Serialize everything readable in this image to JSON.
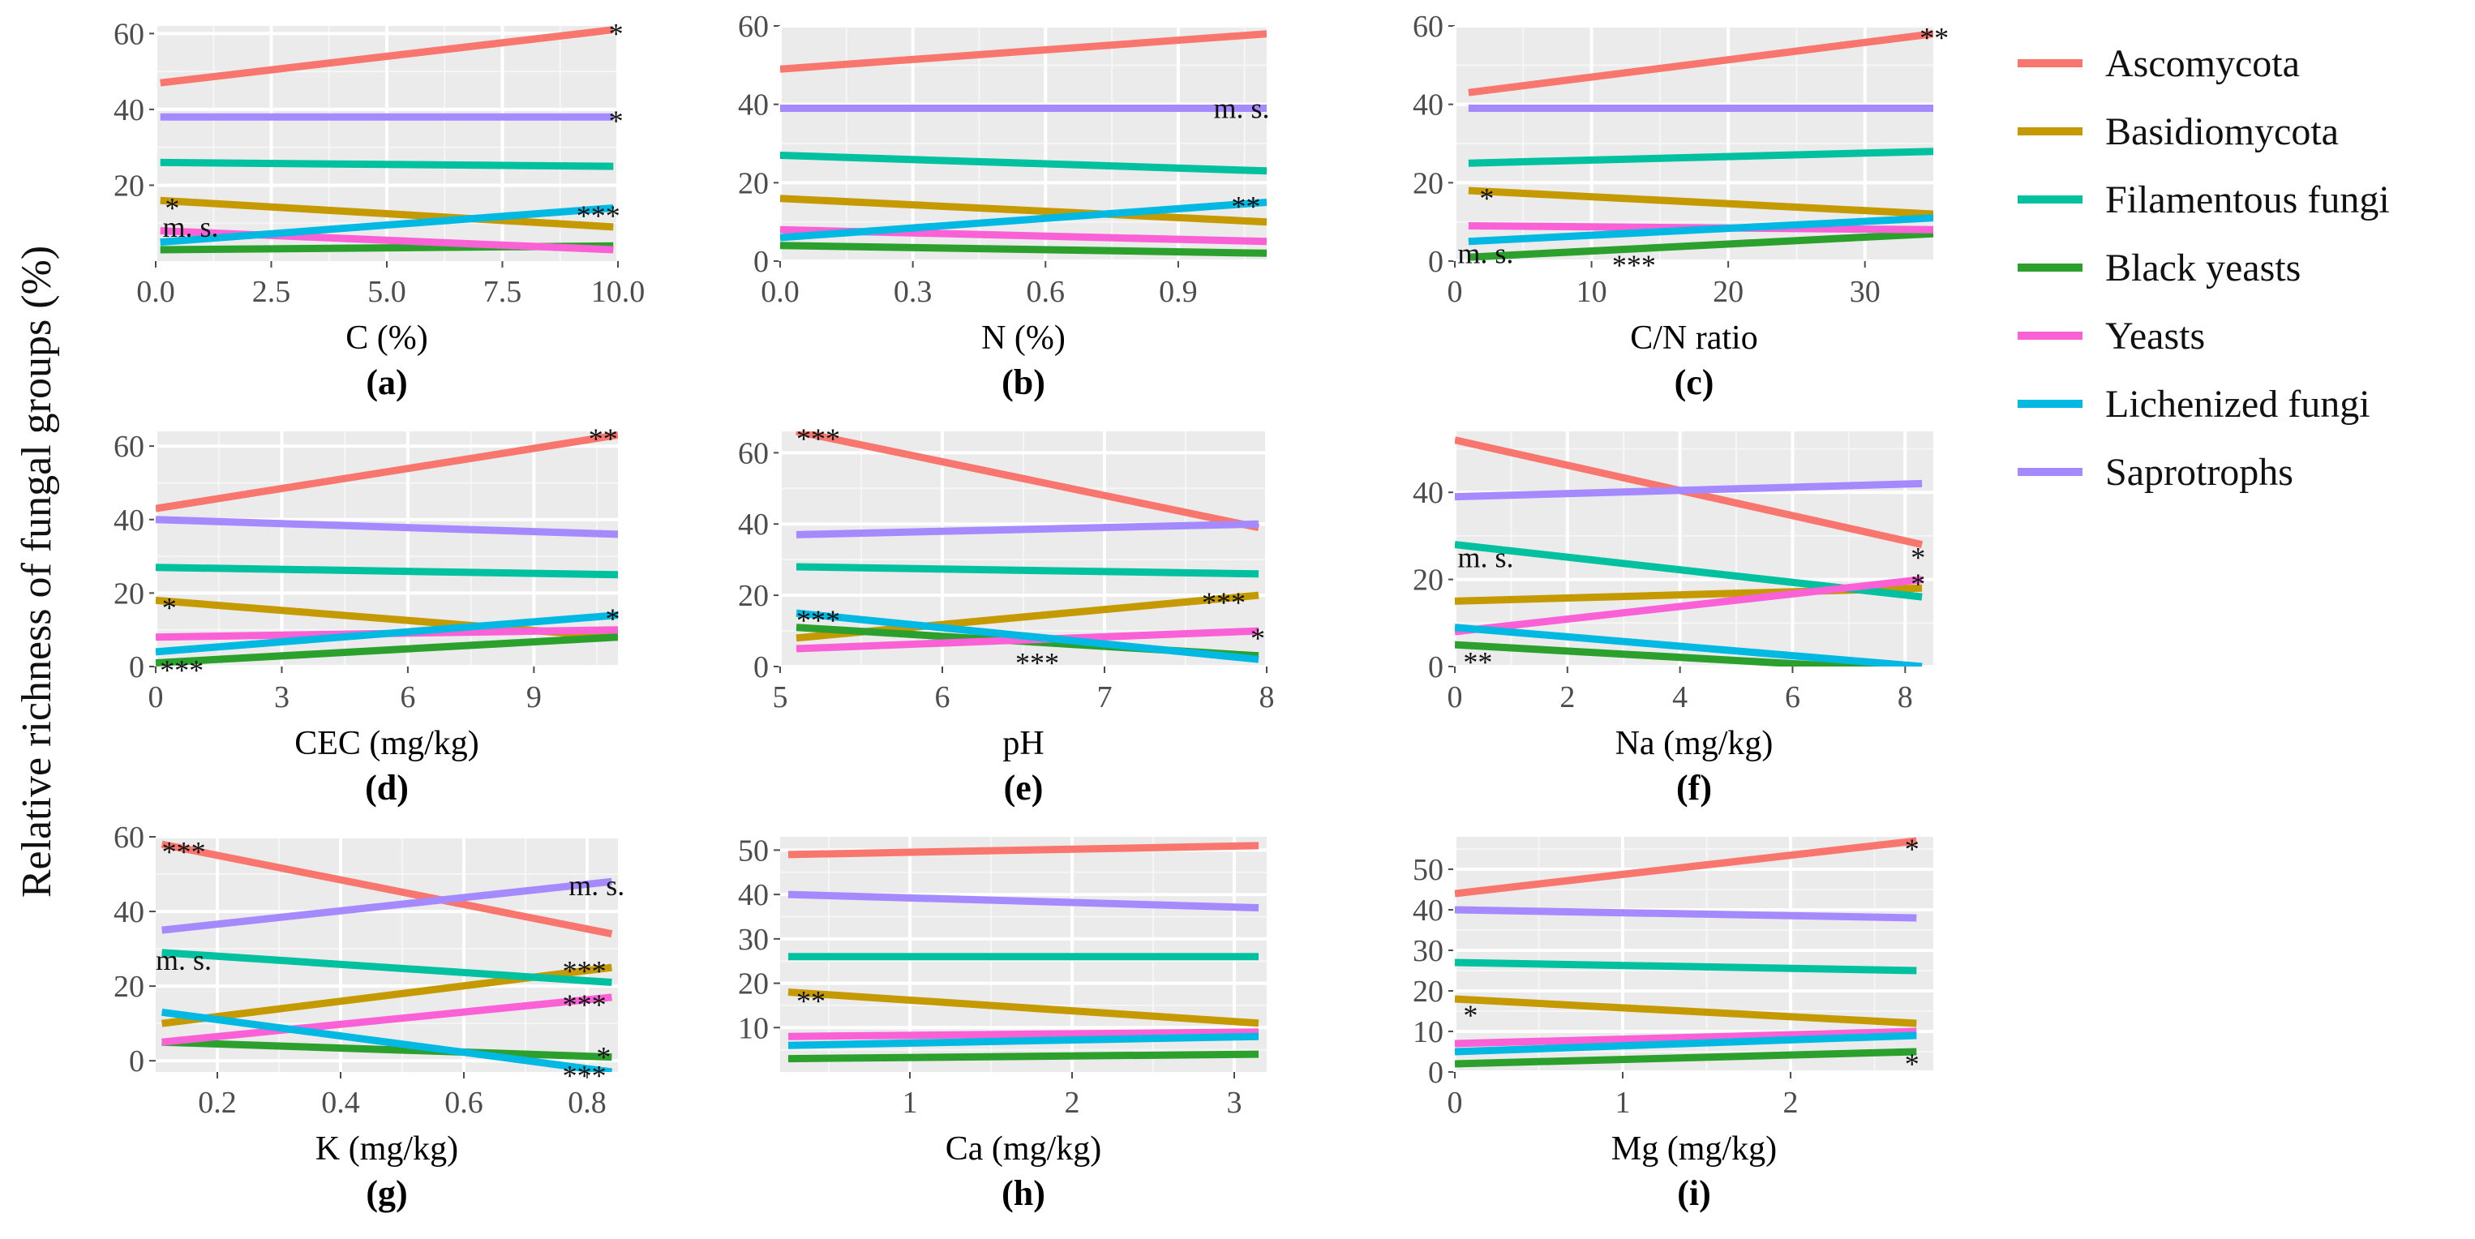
{
  "figure": {
    "ylabel": "Relative richness of fungal groups (%)",
    "legend": {
      "placement": "right"
    },
    "group_colors": {
      "Ascomycota": "#f8766d",
      "Basidiomycota": "#c49a00",
      "Filamentous fungi": "#00c19f",
      "Black yeasts": "#2ca02c",
      "Yeasts": "#fb61d7",
      "Lichenized fungi": "#00b9e3",
      "Saprotrophs": "#a58aff"
    }
  },
  "chart_data": [
    {
      "type": "line",
      "panel": "(a)",
      "xlabel": "C (%)",
      "xlim": [
        0,
        10
      ],
      "ylim": [
        0,
        62
      ],
      "xticks": [
        0,
        2.5,
        5,
        7.5,
        10
      ],
      "xticklabels": [
        "0.0",
        "2.5",
        "5.0",
        "7.5",
        "10.0"
      ],
      "yticks": [
        20,
        40,
        60
      ],
      "series": [
        {
          "name": "Ascomycota",
          "x": [
            0.1,
            9.9
          ],
          "y": [
            47,
            61
          ]
        },
        {
          "name": "Basidiomycota",
          "x": [
            0.1,
            9.9
          ],
          "y": [
            16,
            9
          ]
        },
        {
          "name": "Filamentous fungi",
          "x": [
            0.1,
            9.9
          ],
          "y": [
            26,
            25
          ]
        },
        {
          "name": "Black yeasts",
          "x": [
            0.1,
            9.9
          ],
          "y": [
            3,
            4
          ]
        },
        {
          "name": "Yeasts",
          "x": [
            0.1,
            9.9
          ],
          "y": [
            8,
            3
          ]
        },
        {
          "name": "Lichenized fungi",
          "x": [
            0.1,
            9.9
          ],
          "y": [
            5,
            14
          ]
        },
        {
          "name": "Saprotrophs",
          "x": [
            0.1,
            9.9
          ],
          "y": [
            38,
            38
          ]
        }
      ],
      "annotations": [
        {
          "text": "*",
          "x": 9.8,
          "y": 60
        },
        {
          "text": "*",
          "x": 9.8,
          "y": 37
        },
        {
          "text": "***",
          "x": 9.1,
          "y": 12
        },
        {
          "text": "*",
          "x": 0.2,
          "y": 14
        },
        {
          "text": "m. s.",
          "x": 0.15,
          "y": 9
        }
      ]
    },
    {
      "type": "line",
      "panel": "(b)",
      "xlabel": "N (%)",
      "xlim": [
        0,
        1.1
      ],
      "ylim": [
        0,
        60
      ],
      "xticks": [
        0,
        0.3,
        0.6,
        0.9
      ],
      "xticklabels": [
        "0.0",
        "0.3",
        "0.6",
        "0.9"
      ],
      "yticks": [
        0,
        20,
        40,
        60
      ],
      "series": [
        {
          "name": "Ascomycota",
          "x": [
            0,
            1.1
          ],
          "y": [
            49,
            58
          ]
        },
        {
          "name": "Basidiomycota",
          "x": [
            0,
            1.1
          ],
          "y": [
            16,
            10
          ]
        },
        {
          "name": "Filamentous fungi",
          "x": [
            0,
            1.1
          ],
          "y": [
            27,
            23
          ]
        },
        {
          "name": "Black yeasts",
          "x": [
            0,
            1.1
          ],
          "y": [
            4,
            2
          ]
        },
        {
          "name": "Yeasts",
          "x": [
            0,
            1.1
          ],
          "y": [
            8,
            5
          ]
        },
        {
          "name": "Lichenized fungi",
          "x": [
            0,
            1.1
          ],
          "y": [
            6,
            15
          ]
        },
        {
          "name": "Saprotrophs",
          "x": [
            0,
            1.1
          ],
          "y": [
            39,
            39
          ]
        }
      ],
      "annotations": [
        {
          "text": "m. s.",
          "x": 0.98,
          "y": 39
        },
        {
          "text": "**",
          "x": 1.02,
          "y": 14
        }
      ]
    },
    {
      "type": "line",
      "panel": "(c)",
      "xlabel": "C/N ratio",
      "xlim": [
        0,
        35
      ],
      "ylim": [
        0,
        60
      ],
      "xticks": [
        0,
        10,
        20,
        30
      ],
      "xticklabels": [
        "0",
        "10",
        "20",
        "30"
      ],
      "yticks": [
        0,
        20,
        40,
        60
      ],
      "series": [
        {
          "name": "Ascomycota",
          "x": [
            1,
            35
          ],
          "y": [
            43,
            58
          ]
        },
        {
          "name": "Basidiomycota",
          "x": [
            1,
            35
          ],
          "y": [
            18,
            12
          ]
        },
        {
          "name": "Filamentous fungi",
          "x": [
            1,
            35
          ],
          "y": [
            25,
            28
          ]
        },
        {
          "name": "Black yeasts",
          "x": [
            1,
            35
          ],
          "y": [
            1,
            7
          ]
        },
        {
          "name": "Yeasts",
          "x": [
            1,
            35
          ],
          "y": [
            9,
            8
          ]
        },
        {
          "name": "Lichenized fungi",
          "x": [
            1,
            35
          ],
          "y": [
            5,
            11
          ]
        },
        {
          "name": "Saprotrophs",
          "x": [
            1,
            35
          ],
          "y": [
            39,
            39
          ]
        }
      ],
      "annotations": [
        {
          "text": "**",
          "x": 34,
          "y": 57
        },
        {
          "text": "*",
          "x": 1.8,
          "y": 16
        },
        {
          "text": "m. s.",
          "x": 0.2,
          "y": 2
        },
        {
          "text": "***",
          "x": 11.5,
          "y": -1
        }
      ]
    },
    {
      "type": "line",
      "panel": "(d)",
      "xlabel": "CEC (mg/kg)",
      "xlim": [
        0,
        11
      ],
      "ylim": [
        0,
        64
      ],
      "xticks": [
        0,
        3,
        6,
        9
      ],
      "xticklabels": [
        "0",
        "3",
        "6",
        "9"
      ],
      "yticks": [
        0,
        20,
        40,
        60
      ],
      "series": [
        {
          "name": "Ascomycota",
          "x": [
            0,
            11
          ],
          "y": [
            43,
            63
          ]
        },
        {
          "name": "Basidiomycota",
          "x": [
            0,
            11
          ],
          "y": [
            18,
            8
          ]
        },
        {
          "name": "Filamentous fungi",
          "x": [
            0,
            11
          ],
          "y": [
            27,
            25
          ]
        },
        {
          "name": "Black yeasts",
          "x": [
            0,
            11
          ],
          "y": [
            1,
            8
          ]
        },
        {
          "name": "Yeasts",
          "x": [
            0,
            11
          ],
          "y": [
            8,
            10
          ]
        },
        {
          "name": "Lichenized fungi",
          "x": [
            0,
            11
          ],
          "y": [
            4,
            14
          ]
        },
        {
          "name": "Saprotrophs",
          "x": [
            0,
            11
          ],
          "y": [
            40,
            36
          ]
        }
      ],
      "annotations": [
        {
          "text": "**",
          "x": 10.3,
          "y": 62
        },
        {
          "text": "*",
          "x": 10.7,
          "y": 13
        },
        {
          "text": "*",
          "x": 0.15,
          "y": 16
        },
        {
          "text": "***",
          "x": 0.1,
          "y": -1
        }
      ]
    },
    {
      "type": "line",
      "panel": "(e)",
      "xlabel": "pH",
      "xlim": [
        5,
        8
      ],
      "ylim": [
        0,
        66
      ],
      "xticks": [
        5,
        6,
        7,
        8
      ],
      "xticklabels": [
        "5",
        "6",
        "7",
        "8"
      ],
      "yticks": [
        0,
        20,
        40,
        60
      ],
      "series": [
        {
          "name": "Ascomycota",
          "x": [
            5.1,
            7.95
          ],
          "y": [
            66,
            39
          ]
        },
        {
          "name": "Basidiomycota",
          "x": [
            5.1,
            7.95
          ],
          "y": [
            8,
            20
          ]
        },
        {
          "name": "Filamentous fungi",
          "x": [
            5.1,
            7.95
          ],
          "y": [
            28,
            26
          ]
        },
        {
          "name": "Black yeasts",
          "x": [
            5.1,
            7.95
          ],
          "y": [
            11,
            3
          ]
        },
        {
          "name": "Yeasts",
          "x": [
            5.1,
            7.95
          ],
          "y": [
            5,
            10
          ]
        },
        {
          "name": "Lichenized fungi",
          "x": [
            5.1,
            7.95
          ],
          "y": [
            15,
            2
          ]
        },
        {
          "name": "Saprotrophs",
          "x": [
            5.1,
            7.95
          ],
          "y": [
            37,
            40
          ]
        }
      ],
      "annotations": [
        {
          "text": "***",
          "x": 5.1,
          "y": 64
        },
        {
          "text": "***",
          "x": 5.1,
          "y": 13
        },
        {
          "text": "***",
          "x": 7.6,
          "y": 18
        },
        {
          "text": "*",
          "x": 7.9,
          "y": 8
        },
        {
          "text": "***",
          "x": 6.45,
          "y": 1
        }
      ]
    },
    {
      "type": "line",
      "panel": "(f)",
      "xlabel": "Na (mg/kg)",
      "xlim": [
        0,
        8.5
      ],
      "ylim": [
        0,
        54
      ],
      "xticks": [
        0,
        2,
        4,
        6,
        8
      ],
      "xticklabels": [
        "0",
        "2",
        "4",
        "6",
        "8"
      ],
      "yticks": [
        0,
        20,
        40
      ],
      "series": [
        {
          "name": "Ascomycota",
          "x": [
            0,
            8.3
          ],
          "y": [
            52,
            28
          ]
        },
        {
          "name": "Basidiomycota",
          "x": [
            0,
            8.3
          ],
          "y": [
            15,
            18
          ]
        },
        {
          "name": "Filamentous fungi",
          "x": [
            0,
            8.3
          ],
          "y": [
            28,
            16
          ]
        },
        {
          "name": "Black yeasts",
          "x": [
            0,
            8.3
          ],
          "y": [
            5,
            -1
          ]
        },
        {
          "name": "Yeasts",
          "x": [
            0,
            8.3
          ],
          "y": [
            8,
            20
          ]
        },
        {
          "name": "Lichenized fungi",
          "x": [
            0,
            8.3
          ],
          "y": [
            9,
            0
          ]
        },
        {
          "name": "Saprotrophs",
          "x": [
            0,
            8.3
          ],
          "y": [
            39,
            42
          ]
        }
      ],
      "annotations": [
        {
          "text": "*",
          "x": 8.1,
          "y": 25
        },
        {
          "text": "*",
          "x": 8.1,
          "y": 19
        },
        {
          "text": "m. s.",
          "x": 0.05,
          "y": 25
        },
        {
          "text": "**",
          "x": 0.15,
          "y": 1
        }
      ]
    },
    {
      "type": "line",
      "panel": "(g)",
      "xlabel": "K (mg/kg)",
      "xlim": [
        0.1,
        0.85
      ],
      "ylim": [
        -3,
        60
      ],
      "xticks": [
        0.2,
        0.4,
        0.6,
        0.8
      ],
      "xticklabels": [
        "0.2",
        "0.4",
        "0.6",
        "0.8"
      ],
      "yticks": [
        0,
        20,
        40,
        60
      ],
      "series": [
        {
          "name": "Ascomycota",
          "x": [
            0.11,
            0.84
          ],
          "y": [
            58,
            34
          ]
        },
        {
          "name": "Basidiomycota",
          "x": [
            0.11,
            0.84
          ],
          "y": [
            10,
            25
          ]
        },
        {
          "name": "Filamentous fungi",
          "x": [
            0.11,
            0.84
          ],
          "y": [
            29,
            21
          ]
        },
        {
          "name": "Black yeasts",
          "x": [
            0.11,
            0.84
          ],
          "y": [
            5,
            1
          ]
        },
        {
          "name": "Yeasts",
          "x": [
            0.11,
            0.84
          ],
          "y": [
            5,
            17
          ]
        },
        {
          "name": "Lichenized fungi",
          "x": [
            0.11,
            0.84
          ],
          "y": [
            13,
            -3
          ]
        },
        {
          "name": "Saprotrophs",
          "x": [
            0.11,
            0.84
          ],
          "y": [
            35,
            48
          ]
        }
      ],
      "annotations": [
        {
          "text": "***",
          "x": 0.11,
          "y": 56
        },
        {
          "text": "m. s.",
          "x": 0.77,
          "y": 47
        },
        {
          "text": "m. s.",
          "x": 0.1,
          "y": 27
        },
        {
          "text": "***",
          "x": 0.76,
          "y": 24
        },
        {
          "text": "***",
          "x": 0.76,
          "y": 15
        },
        {
          "text": "*",
          "x": 0.815,
          "y": 1
        },
        {
          "text": "***",
          "x": 0.76,
          "y": -4
        }
      ]
    },
    {
      "type": "line",
      "panel": "(h)",
      "xlabel": "Ca (mg/kg)",
      "xlim": [
        0.2,
        3.2
      ],
      "ylim": [
        0,
        53
      ],
      "xticks": [
        1,
        2,
        3
      ],
      "xticklabels": [
        "1",
        "2",
        "3"
      ],
      "yticks": [
        10,
        20,
        30,
        40,
        50
      ],
      "series": [
        {
          "name": "Ascomycota",
          "x": [
            0.25,
            3.15
          ],
          "y": [
            49,
            51
          ]
        },
        {
          "name": "Basidiomycota",
          "x": [
            0.25,
            3.15
          ],
          "y": [
            18,
            11
          ]
        },
        {
          "name": "Filamentous fungi",
          "x": [
            0.25,
            3.15
          ],
          "y": [
            26,
            26
          ]
        },
        {
          "name": "Black yeasts",
          "x": [
            0.25,
            3.15
          ],
          "y": [
            3,
            4
          ]
        },
        {
          "name": "Yeasts",
          "x": [
            0.25,
            3.15
          ],
          "y": [
            8,
            9
          ]
        },
        {
          "name": "Lichenized fungi",
          "x": [
            0.25,
            3.15
          ],
          "y": [
            6,
            8
          ]
        },
        {
          "name": "Saprotrophs",
          "x": [
            0.25,
            3.15
          ],
          "y": [
            40,
            37
          ]
        }
      ],
      "annotations": [
        {
          "text": "**",
          "x": 0.3,
          "y": 16
        }
      ]
    },
    {
      "type": "line",
      "panel": "(i)",
      "xlabel": "Mg (mg/kg)",
      "xlim": [
        0,
        2.85
      ],
      "ylim": [
        0,
        58
      ],
      "xticks": [
        0,
        1,
        2
      ],
      "xticklabels": [
        "0",
        "1",
        "2"
      ],
      "yticks": [
        0,
        10,
        20,
        30,
        40,
        50
      ],
      "series": [
        {
          "name": "Ascomycota",
          "x": [
            0,
            2.75
          ],
          "y": [
            44,
            57
          ]
        },
        {
          "name": "Basidiomycota",
          "x": [
            0,
            2.75
          ],
          "y": [
            18,
            12
          ]
        },
        {
          "name": "Filamentous fungi",
          "x": [
            0,
            2.75
          ],
          "y": [
            27,
            25
          ]
        },
        {
          "name": "Black yeasts",
          "x": [
            0,
            2.75
          ],
          "y": [
            2,
            5
          ]
        },
        {
          "name": "Yeasts",
          "x": [
            0,
            2.75
          ],
          "y": [
            7,
            10
          ]
        },
        {
          "name": "Lichenized fungi",
          "x": [
            0,
            2.75
          ],
          "y": [
            5,
            9
          ]
        },
        {
          "name": "Saprotrophs",
          "x": [
            0,
            2.75
          ],
          "y": [
            40,
            38
          ]
        }
      ],
      "annotations": [
        {
          "text": "*",
          "x": 2.68,
          "y": 55
        },
        {
          "text": "*",
          "x": 0.05,
          "y": 14
        },
        {
          "text": "*",
          "x": 2.68,
          "y": 2
        }
      ]
    }
  ]
}
